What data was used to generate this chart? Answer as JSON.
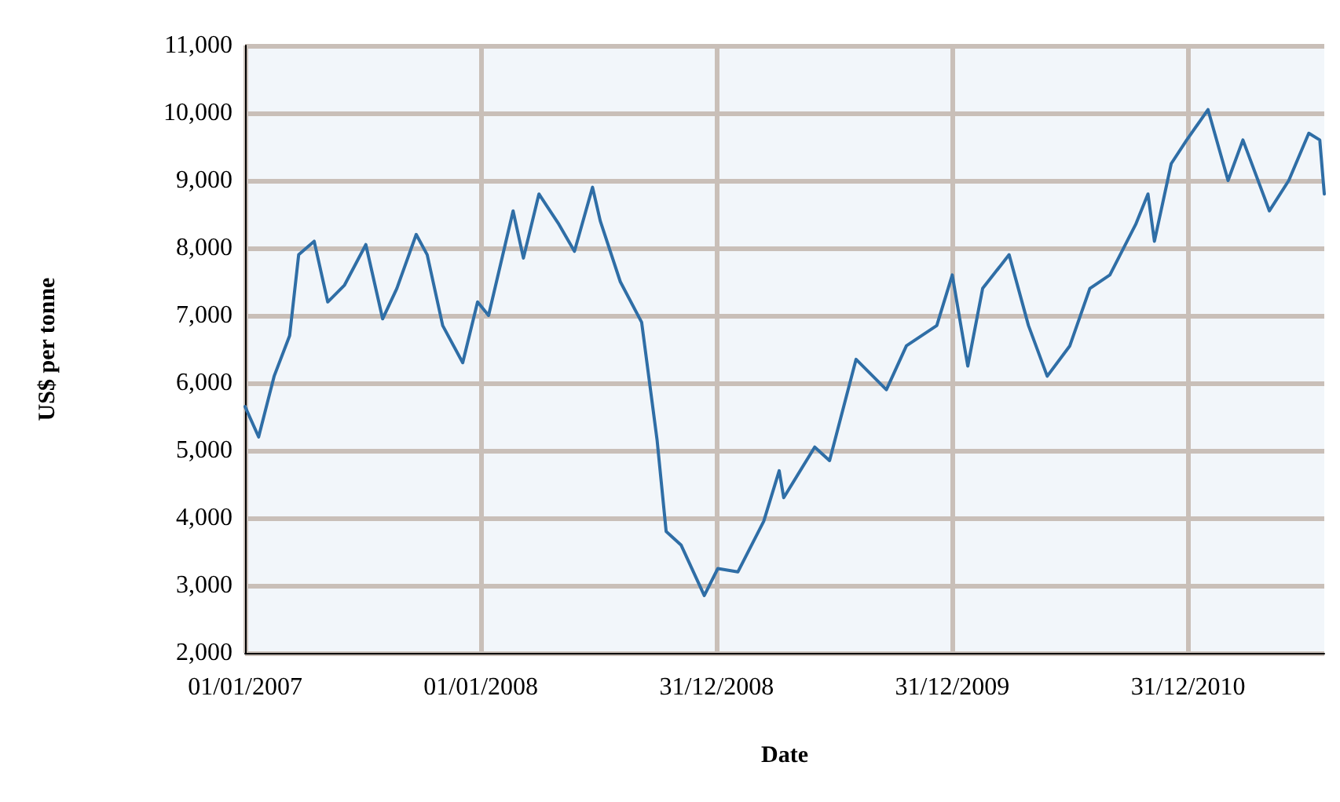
{
  "chart_data": {
    "type": "line",
    "xlabel": "Date",
    "ylabel": "US$ per tonne",
    "x": [
      "2007-01-01",
      "2007-01-22",
      "2007-02-15",
      "2007-03-11",
      "2007-03-25",
      "2007-04-18",
      "2007-05-09",
      "2007-06-04",
      "2007-07-07",
      "2007-08-02",
      "2007-08-24",
      "2007-09-23",
      "2007-10-10",
      "2007-11-03",
      "2007-12-04",
      "2007-12-27",
      "2008-01-13",
      "2008-02-20",
      "2008-03-07",
      "2008-03-31",
      "2008-05-01",
      "2008-05-25",
      "2008-06-22",
      "2008-07-04",
      "2008-08-04",
      "2008-09-06",
      "2008-09-30",
      "2008-10-14",
      "2008-11-06",
      "2008-12-12",
      "2009-01-02",
      "2009-02-02",
      "2009-03-14",
      "2009-04-07",
      "2009-04-14",
      "2009-06-01",
      "2009-06-24",
      "2009-08-04",
      "2009-09-20",
      "2009-10-21",
      "2009-12-07",
      "2009-12-31",
      "2010-01-24",
      "2010-02-16",
      "2010-03-29",
      "2010-04-28",
      "2010-05-27",
      "2010-07-01",
      "2010-08-01",
      "2010-09-01",
      "2010-10-11",
      "2010-10-30",
      "2010-11-09",
      "2010-12-05",
      "2010-12-29",
      "2011-01-31",
      "2011-03-03",
      "2011-03-26",
      "2011-05-06",
      "2011-06-05",
      "2011-07-06",
      "2011-07-23",
      "2011-07-30"
    ],
    "series": [
      {
        "color": "#2f6ea6",
        "values": [
          5650,
          5200,
          6100,
          6700,
          7900,
          8100,
          7200,
          7450,
          8050,
          6950,
          7400,
          8200,
          7900,
          6850,
          6300,
          7200,
          7000,
          8550,
          7850,
          8800,
          8350,
          7950,
          8900,
          8400,
          7500,
          6900,
          5150,
          3800,
          3600,
          2850,
          3250,
          3200,
          3950,
          4700,
          4300,
          5050,
          4850,
          6350,
          5900,
          6550,
          6850,
          7600,
          6250,
          7400,
          7900,
          6850,
          6100,
          6550,
          7400,
          7600,
          8350,
          8800,
          8100,
          9250,
          9600,
          10050,
          9000,
          9600,
          8550,
          9000,
          9700,
          9600,
          8800
        ]
      }
    ],
    "xlim": [
      "2007-01-01",
      "2011-07-30"
    ],
    "xticks": [
      {
        "value": "2007-01-01",
        "label": "01/01/2007"
      },
      {
        "value": "2008-01-01",
        "label": "01/01/2008"
      },
      {
        "value": "2008-12-31",
        "label": "31/12/2008"
      },
      {
        "value": "2009-12-31",
        "label": "31/12/2009"
      },
      {
        "value": "2010-12-31",
        "label": "31/12/2010"
      }
    ],
    "ylim": [
      2000,
      11000
    ],
    "yticks": [
      {
        "value": 2000,
        "label": "2,000"
      },
      {
        "value": 3000,
        "label": "3,000"
      },
      {
        "value": 4000,
        "label": "4,000"
      },
      {
        "value": 5000,
        "label": "5,000"
      },
      {
        "value": 6000,
        "label": "6,000"
      },
      {
        "value": 7000,
        "label": "7,000"
      },
      {
        "value": 8000,
        "label": "8,000"
      },
      {
        "value": 9000,
        "label": "9,000"
      },
      {
        "value": 10000,
        "label": "10,000"
      },
      {
        "value": 11000,
        "label": "11,000"
      }
    ],
    "grid": true,
    "marker": "none",
    "line_style": "solid"
  }
}
